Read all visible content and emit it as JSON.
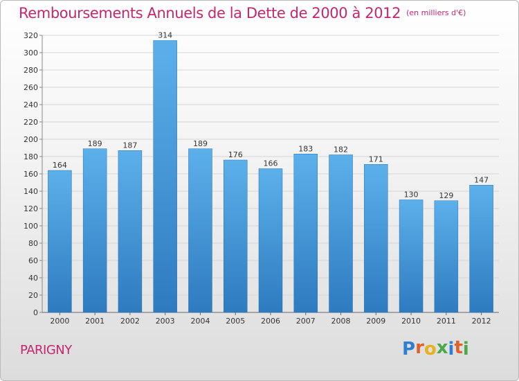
{
  "chart_data": {
    "type": "bar",
    "title": "Remboursements Annuels de la Dette de 2000 à 2012",
    "subtitle": "(en milliers d'€)",
    "categories": [
      "2000",
      "2001",
      "2002",
      "2003",
      "2004",
      "2005",
      "2006",
      "2007",
      "2008",
      "2009",
      "2010",
      "2011",
      "2012"
    ],
    "values": [
      164,
      189,
      187,
      314,
      189,
      176,
      166,
      183,
      182,
      171,
      130,
      129,
      147
    ],
    "ylim": [
      0,
      320
    ],
    "yticks": [
      0,
      20,
      40,
      60,
      80,
      100,
      120,
      140,
      160,
      180,
      200,
      220,
      240,
      260,
      280,
      300,
      320
    ],
    "grid": true,
    "legend": "none",
    "bar_color": "#4a9fe0"
  },
  "footer": {
    "place": "PARIGNY",
    "logo_letters": [
      "P",
      "r",
      "o",
      "x",
      "i",
      "t",
      "i"
    ],
    "logo_colors": [
      "#2f7fd0",
      "#e0602a",
      "#e8b21c",
      "#4aa84a",
      "#2f7fd0",
      "#e0602a",
      "#4aa84a"
    ]
  }
}
